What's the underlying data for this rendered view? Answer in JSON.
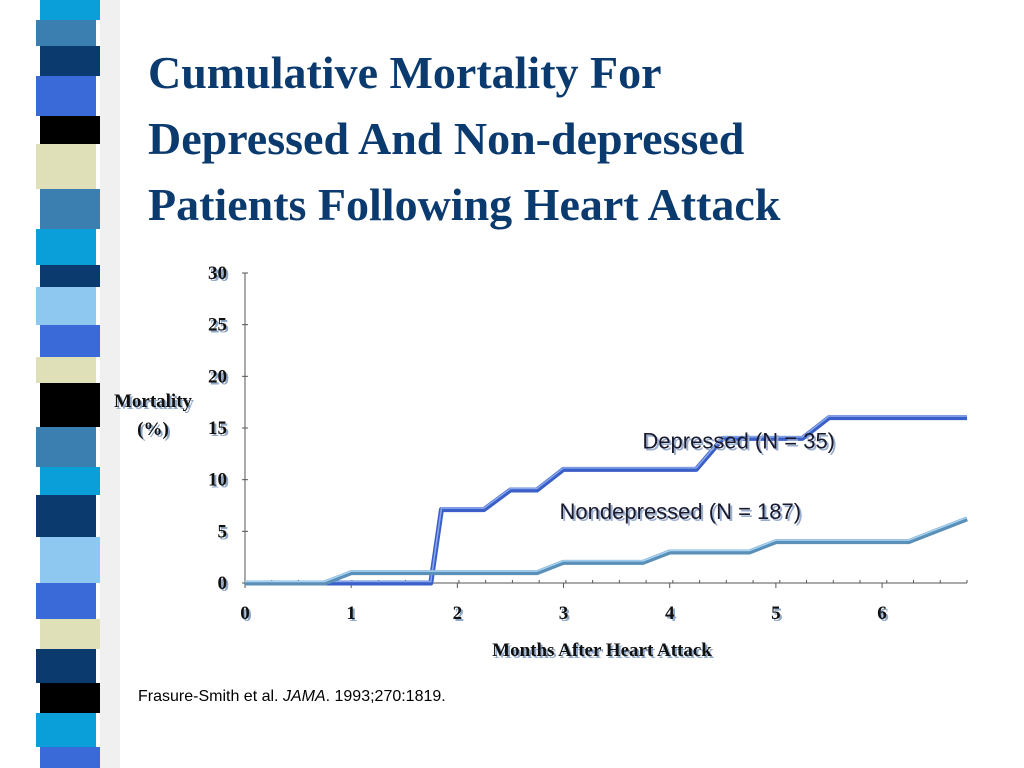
{
  "slide": {
    "title_lines": [
      "Cumulative Mortality For",
      "Depressed And Non-depressed",
      "Patients Following Heart Attack"
    ],
    "source": {
      "prefix": "Frasure-Smith et al.",
      "journal": "JAMA",
      "suffix": ".  1993;270:1819."
    },
    "colors": {
      "title": "#0b3a6e",
      "depressed": "#3a5fc8",
      "nondepressed": "#5a8fb8",
      "stripe": [
        "#0a9fd8",
        "#3a7fb0",
        "#0b3a6e",
        "#3a6ad8",
        "#000000",
        "#e0e0b8",
        "#4a8aaa",
        "#0a9fd8",
        "#0b3a6e",
        "#8ec8f0"
      ]
    }
  },
  "chart_data": {
    "type": "line",
    "xlabel": "Months After Heart Attack",
    "ylabel": "Mortality (%)",
    "ylabel_lines": [
      "Mortality",
      "(%)"
    ],
    "xlim": [
      0,
      6.8
    ],
    "ylim": [
      0,
      30
    ],
    "xticks": [
      0,
      1,
      2,
      3,
      4,
      5,
      6
    ],
    "yticks": [
      0,
      5,
      10,
      15,
      20,
      25,
      30
    ],
    "series": [
      {
        "name": "Depressed (N = 35)",
        "x": [
          0,
          1.75,
          1.85,
          2.25,
          2.5,
          2.75,
          3.0,
          4.25,
          4.5,
          5.25,
          5.5,
          6.8
        ],
        "y": [
          0,
          0,
          7.1,
          7.1,
          9.0,
          9.0,
          11.0,
          11.0,
          14.0,
          14.0,
          16.0,
          16.0
        ]
      },
      {
        "name": "Nondepressed (N = 187)",
        "x": [
          0,
          0.75,
          1.0,
          2.75,
          3.0,
          3.75,
          4.0,
          4.75,
          5.0,
          6.25,
          6.5,
          6.8
        ],
        "y": [
          0,
          0,
          1.0,
          1.0,
          2.0,
          2.0,
          3.0,
          3.0,
          4.0,
          4.0,
          5.0,
          6.2
        ]
      }
    ]
  }
}
